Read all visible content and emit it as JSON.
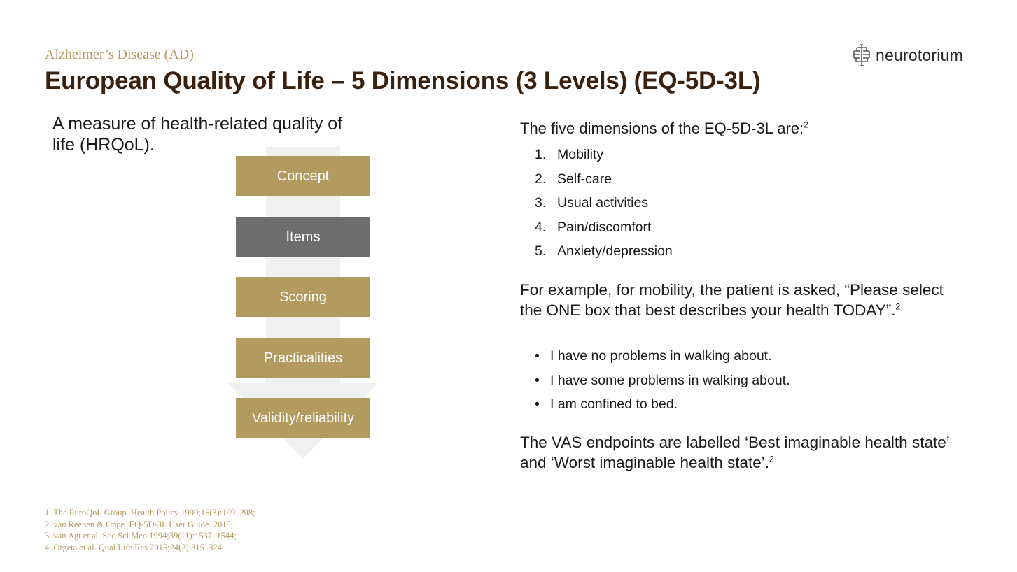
{
  "header": {
    "subtitle": "Alzheimer’s Disease (AD)",
    "title": "European Quality of Life – 5 Dimensions (3 Levels) (EQ-5D-3L)"
  },
  "logo": {
    "text": "neurotorium",
    "icon": "brain-grid-icon"
  },
  "left": {
    "intro": "A measure of health-related quality of life (HRQoL).",
    "steps": [
      {
        "label": "Concept"
      },
      {
        "label": "Items",
        "highlight": true
      },
      {
        "label": "Scoring"
      },
      {
        "label": "Practicalities"
      },
      {
        "label": "Validity/reliability"
      }
    ]
  },
  "right": {
    "heading": "The five dimensions of the EQ-5D-3L are:",
    "heading_ref": "2",
    "dimensions": [
      {
        "num": "1.",
        "label": "Mobility"
      },
      {
        "num": "2.",
        "label": "Self-care"
      },
      {
        "num": "3.",
        "label": "Usual activities"
      },
      {
        "num": "4.",
        "label": "Pain/discomfort"
      },
      {
        "num": "5.",
        "label": "Anxiety/depression"
      }
    ],
    "example": "For example, for mobility, the patient is asked, “Please select the ONE box that best describes your health TODAY”.",
    "example_ref": "2",
    "options": [
      "I have no problems in walking about.",
      "I have some problems in walking about.",
      "I am confined to bed."
    ],
    "vas": "The VAS endpoints are labelled ‘Best imaginable health state’ and ‘Worst imaginable health state’.",
    "vas_ref": "2"
  },
  "references": [
    "1. The EuroQoL Group. Health Policy 1990;16(3):199–208;",
    "2. van Reenen & Oppe. EQ-5D-3L User Guide. 2015;",
    "3. van Agt et al. Soc Sci Med 1994;39(11):1537–1544;",
    "4. Orgeta et al. Qual Life Res 2015;24(2):315–324"
  ],
  "colors": {
    "gold": "#b39a5e",
    "dark_brown": "#3b200e",
    "grey": "#6d6d6d"
  }
}
